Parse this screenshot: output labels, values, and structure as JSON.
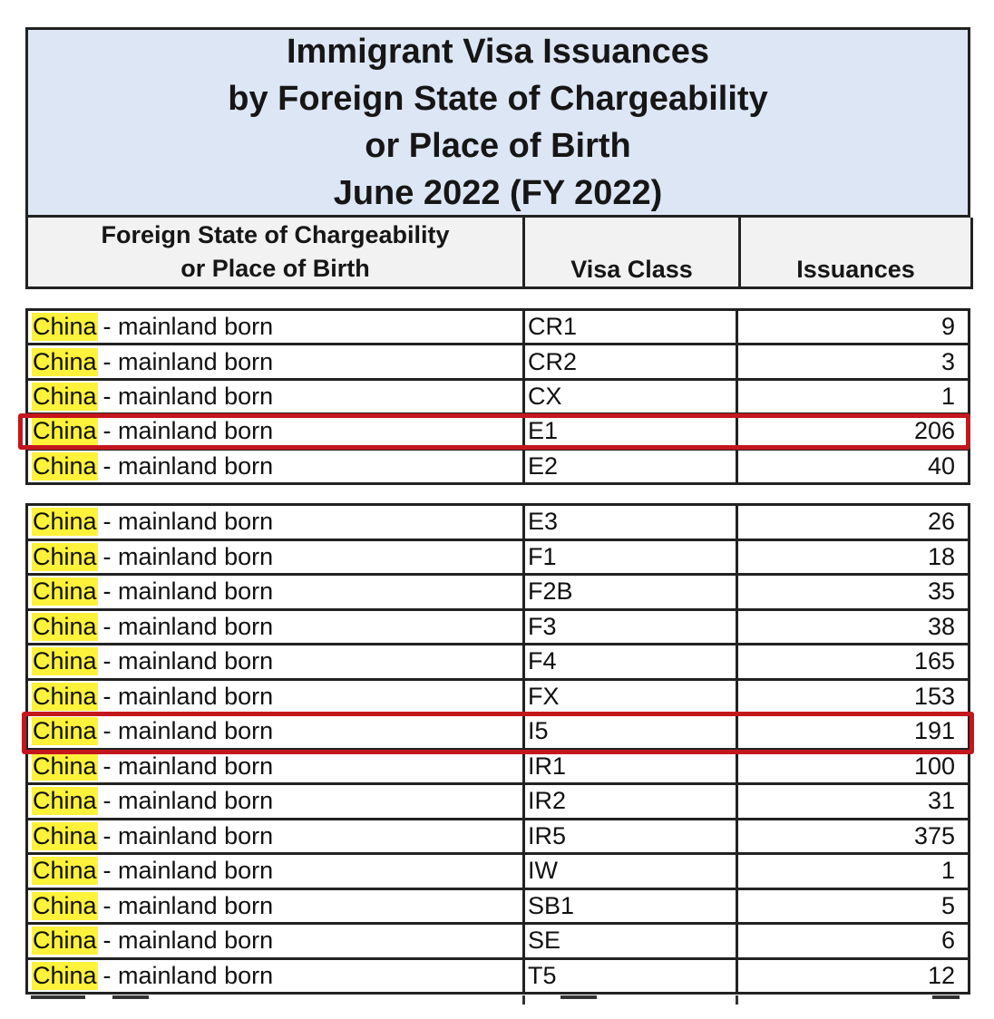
{
  "title": {
    "line1": "Immigrant Visa Issuances",
    "line2": "by Foreign State of Chargeability",
    "line3": "or Place of Birth",
    "line4": "June 2022 (FY 2022)"
  },
  "header": {
    "col1_line1": "Foreign State of Chargeability",
    "col1_line2": "or Place of Birth",
    "col2": "Visa Class",
    "col3": "Issuances"
  },
  "country_highlight": "China",
  "country_rest": "- mainland born",
  "group1": [
    {
      "visa_class": "CR1",
      "issuances": "9"
    },
    {
      "visa_class": "CR2",
      "issuances": "3"
    },
    {
      "visa_class": "CX",
      "issuances": "1"
    },
    {
      "visa_class": "E1",
      "issuances": "206"
    },
    {
      "visa_class": "E2",
      "issuances": "40"
    }
  ],
  "group2": [
    {
      "visa_class": "E3",
      "issuances": "26"
    },
    {
      "visa_class": "F1",
      "issuances": "18"
    },
    {
      "visa_class": "F2B",
      "issuances": "35"
    },
    {
      "visa_class": "F3",
      "issuances": "38"
    },
    {
      "visa_class": "F4",
      "issuances": "165"
    },
    {
      "visa_class": "FX",
      "issuances": "153"
    },
    {
      "visa_class": "I5",
      "issuances": "191"
    },
    {
      "visa_class": "IR1",
      "issuances": "100"
    },
    {
      "visa_class": "IR2",
      "issuances": "31"
    },
    {
      "visa_class": "IR5",
      "issuances": "375"
    },
    {
      "visa_class": "IW",
      "issuances": "1"
    },
    {
      "visa_class": "SB1",
      "issuances": "5"
    },
    {
      "visa_class": "SE",
      "issuances": "6"
    },
    {
      "visa_class": "T5",
      "issuances": "12"
    }
  ],
  "highlight_color": "#fff23a",
  "annotation_color": "#c4171d",
  "header_bg": "#dde6f5"
}
